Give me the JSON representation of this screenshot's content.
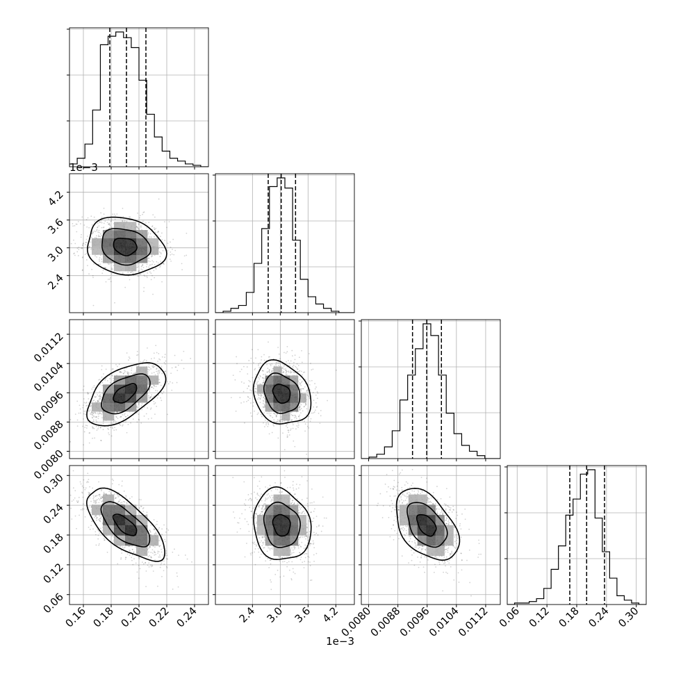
{
  "chart_data": {
    "type": "corner",
    "parameters": [
      {
        "range": [
          0.15,
          0.25
        ],
        "ticks": [
          0.16,
          0.18,
          0.2,
          0.22,
          0.24
        ],
        "tick_labels": [
          "0.16",
          "0.18",
          "0.20",
          "0.22",
          "0.24"
        ],
        "exponent_label": "",
        "center": [
          0.19
        ],
        "sigma": [
          0.014
        ],
        "quantiles": [
          0.179,
          0.191,
          0.205
        ],
        "histogram": [
          2,
          6,
          16,
          40,
          86,
          92,
          95,
          91,
          84,
          61,
          37,
          21,
          11,
          6,
          4,
          2,
          1,
          0
        ]
      },
      {
        "range": [
          0.0016,
          0.0046
        ],
        "ticks": [
          0.0024,
          0.003,
          0.0036,
          0.0042
        ],
        "tick_labels": [
          "2.4",
          "3.0",
          "3.6",
          "4.2"
        ],
        "exponent_label": "1e−3",
        "center": [
          0.00303
        ],
        "sigma": [
          0.00031
        ],
        "quantiles": [
          0.00274,
          0.00302,
          0.00333
        ],
        "histogram": [
          0,
          1,
          3,
          5,
          14,
          34,
          58,
          87,
          93,
          86,
          50,
          23,
          11,
          6,
          3,
          1,
          0,
          0
        ]
      },
      {
        "range": [
          0.0078,
          0.0116
        ],
        "ticks": [
          0.008,
          0.0088,
          0.0096,
          0.0104,
          0.0112
        ],
        "tick_labels": [
          "0.0080",
          "0.0088",
          "0.0096",
          "0.0104",
          "0.0112"
        ],
        "exponent_label": "",
        "center": [
          0.00958
        ],
        "sigma": [
          0.00043
        ],
        "quantiles": [
          0.0092,
          0.00959,
          0.00999
        ],
        "histogram": [
          0,
          1,
          3,
          8,
          19,
          40,
          57,
          75,
          92,
          84,
          57,
          31,
          17,
          9,
          5,
          2,
          0,
          0
        ]
      },
      {
        "range": [
          0.04,
          0.32
        ],
        "ticks": [
          0.06,
          0.12,
          0.18,
          0.24,
          0.3
        ],
        "tick_labels": [
          "0.06",
          "0.12",
          "0.18",
          "0.24",
          "0.30"
        ],
        "exponent_label": "",
        "center": [
          0.2
        ],
        "sigma": [
          0.036
        ],
        "quantiles": [
          0.166,
          0.2,
          0.236
        ],
        "histogram": [
          0,
          1,
          1,
          2,
          4,
          11,
          24,
          40,
          61,
          72,
          89,
          92,
          59,
          36,
          18,
          6,
          3,
          1,
          0
        ]
      }
    ],
    "correlations": {
      "1-0": -0.15,
      "2-0": 0.55,
      "2-1": -0.2,
      "3-0": -0.68,
      "3-1": -0.12,
      "3-2": -0.45
    },
    "grid": true,
    "density_colormap": "greys",
    "contour_levels": 3,
    "quantile_line_style": "dashed"
  }
}
